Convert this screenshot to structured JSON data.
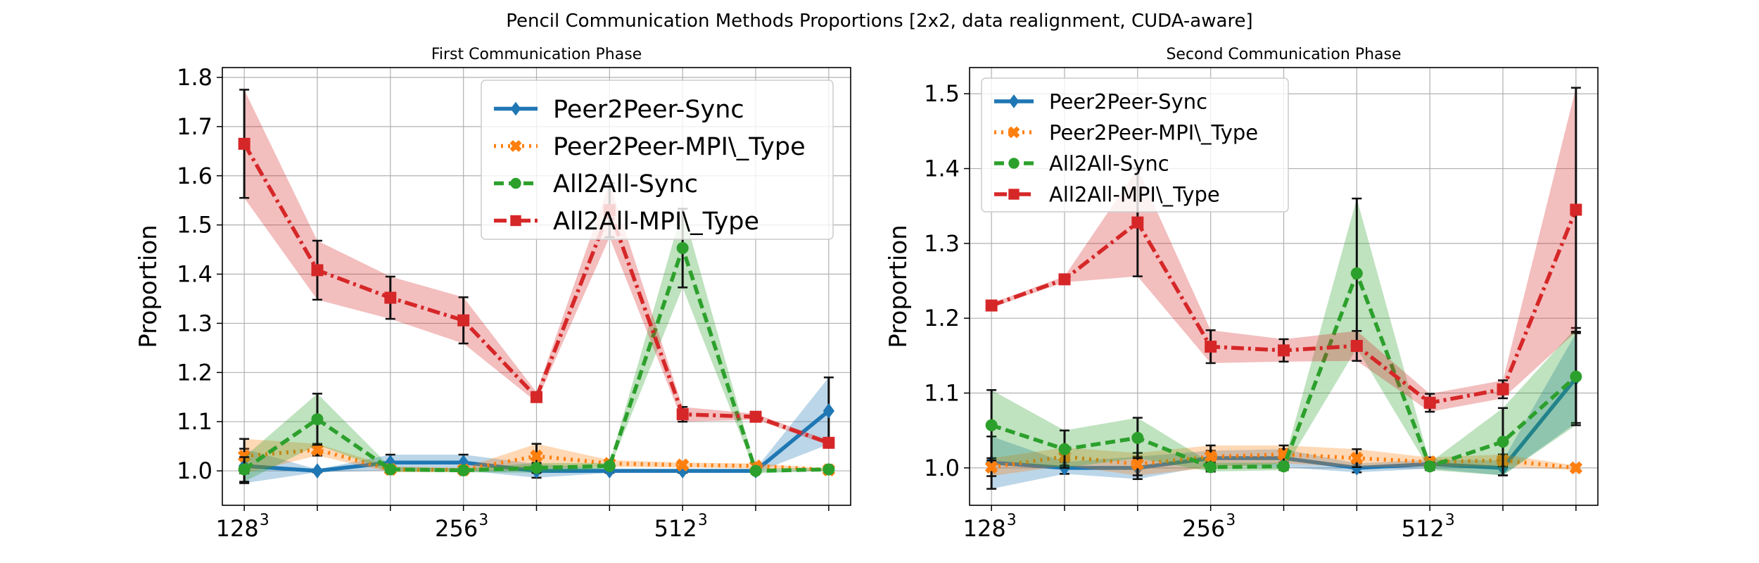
{
  "figure": {
    "suptitle": "Pencil Communication Methods Proportions [2x2, data realignment, CUDA-aware]"
  },
  "chart_data": [
    {
      "type": "line",
      "title": "First Communication Phase",
      "xlabel": "",
      "ylabel": "Proportion",
      "ylim": [
        0.93,
        1.82
      ],
      "yticks": [
        1.0,
        1.1,
        1.2,
        1.3,
        1.4,
        1.5,
        1.6,
        1.7,
        1.8
      ],
      "x": [
        1,
        2,
        3,
        4,
        5,
        6,
        7,
        8,
        9
      ],
      "xlim": [
        0.7,
        9.3
      ],
      "xticks": [
        {
          "x": 1,
          "base": "128",
          "exp": "3"
        },
        {
          "x": 2,
          "base": "",
          "exp": ""
        },
        {
          "x": 3,
          "base": "",
          "exp": ""
        },
        {
          "x": 4,
          "base": "256",
          "exp": "3"
        },
        {
          "x": 5,
          "base": "",
          "exp": ""
        },
        {
          "x": 6,
          "base": "",
          "exp": ""
        },
        {
          "x": 7,
          "base": "512",
          "exp": "3"
        },
        {
          "x": 8,
          "base": "",
          "exp": ""
        },
        {
          "x": 9,
          "base": "",
          "exp": ""
        }
      ],
      "grid": true,
      "legend": {
        "placement": "upper-right",
        "size": "large"
      },
      "series": [
        {
          "name": "Peer2Peer-Sync",
          "color": "#1f77b4",
          "style": "solid",
          "marker": "diamond",
          "values": [
            1.01,
            1.0,
            1.017,
            1.017,
            1.0,
            1.0,
            1.0,
            1.0,
            1.122
          ],
          "err": [
            0.035,
            0.003,
            0.016,
            0.016,
            0.014,
            0.004,
            0.004,
            0.004,
            0.068
          ]
        },
        {
          "name": "Peer2Peer-MPI\\_Type",
          "color": "#ff7f0e",
          "style": "dotted",
          "marker": "x",
          "values": [
            1.03,
            1.043,
            1.003,
            1.002,
            1.03,
            1.015,
            1.012,
            1.01,
            1.002
          ],
          "err": [
            0.035,
            0.012,
            0.006,
            0.004,
            0.025,
            0.007,
            0.005,
            0.005,
            0.003
          ]
        },
        {
          "name": "All2All-Sync",
          "color": "#2ca02c",
          "style": "dashed",
          "marker": "circle",
          "values": [
            1.003,
            1.105,
            1.003,
            1.001,
            1.006,
            1.01,
            1.453,
            1.0,
            1.003
          ],
          "err": [
            0.025,
            0.052,
            0.005,
            0.004,
            0.01,
            0.006,
            0.08,
            0.005,
            0.003
          ]
        },
        {
          "name": "All2All-MPI\\_Type",
          "color": "#d62728",
          "style": "dashdot",
          "marker": "square",
          "values": [
            1.665,
            1.408,
            1.352,
            1.306,
            1.15,
            1.53,
            1.115,
            1.11,
            1.057
          ],
          "err": [
            0.11,
            0.06,
            0.043,
            0.047,
            0.01,
            0.055,
            0.015,
            0.006,
            0.005
          ]
        }
      ]
    },
    {
      "type": "line",
      "title": "Second Communication Phase",
      "xlabel": "",
      "ylabel": "Proportion",
      "ylim": [
        0.95,
        1.535
      ],
      "yticks": [
        1.0,
        1.1,
        1.2,
        1.3,
        1.4,
        1.5
      ],
      "x": [
        1,
        2,
        3,
        4,
        5,
        6,
        7,
        8,
        9
      ],
      "xlim": [
        0.7,
        9.3
      ],
      "xticks": [
        {
          "x": 1,
          "base": "128",
          "exp": "3"
        },
        {
          "x": 2,
          "base": "",
          "exp": ""
        },
        {
          "x": 3,
          "base": "",
          "exp": ""
        },
        {
          "x": 4,
          "base": "256",
          "exp": "3"
        },
        {
          "x": 5,
          "base": "",
          "exp": ""
        },
        {
          "x": 6,
          "base": "",
          "exp": ""
        },
        {
          "x": 7,
          "base": "512",
          "exp": "3"
        },
        {
          "x": 8,
          "base": "",
          "exp": ""
        },
        {
          "x": 9,
          "base": "",
          "exp": ""
        }
      ],
      "grid": true,
      "legend": {
        "placement": "upper-left",
        "size": "medium"
      },
      "series": [
        {
          "name": "Peer2Peer-Sync",
          "color": "#1f77b4",
          "style": "solid",
          "marker": "diamond",
          "values": [
            1.007,
            1.0,
            1.0,
            1.013,
            1.013,
            1.0,
            1.005,
            1.0,
            1.12
          ],
          "err": [
            0.035,
            0.008,
            0.015,
            0.01,
            0.012,
            0.006,
            0.006,
            0.01,
            0.06
          ]
        },
        {
          "name": "Peer2Peer-MPI\\_Type",
          "color": "#ff7f0e",
          "style": "dotted",
          "marker": "x",
          "values": [
            1.001,
            1.015,
            1.005,
            1.015,
            1.018,
            1.013,
            1.008,
            1.01,
            1.0
          ],
          "err": [
            0.012,
            0.012,
            0.015,
            0.015,
            0.012,
            0.012,
            0.006,
            0.008,
            0.003
          ]
        },
        {
          "name": "All2All-Sync",
          "color": "#2ca02c",
          "style": "dashed",
          "marker": "circle",
          "values": [
            1.057,
            1.025,
            1.04,
            1.001,
            1.002,
            1.26,
            1.002,
            1.035,
            1.122
          ],
          "err": [
            0.047,
            0.025,
            0.027,
            0.006,
            0.005,
            0.1,
            0.005,
            0.045,
            0.065
          ]
        },
        {
          "name": "All2All-MPI\\_Type",
          "color": "#d62728",
          "style": "dashdot",
          "marker": "square",
          "values": [
            1.217,
            1.252,
            1.328,
            1.162,
            1.157,
            1.163,
            1.087,
            1.105,
            1.345
          ],
          "err": [
            0.003,
            0.004,
            0.072,
            0.022,
            0.015,
            0.02,
            0.012,
            0.012,
            0.163
          ]
        }
      ]
    }
  ]
}
